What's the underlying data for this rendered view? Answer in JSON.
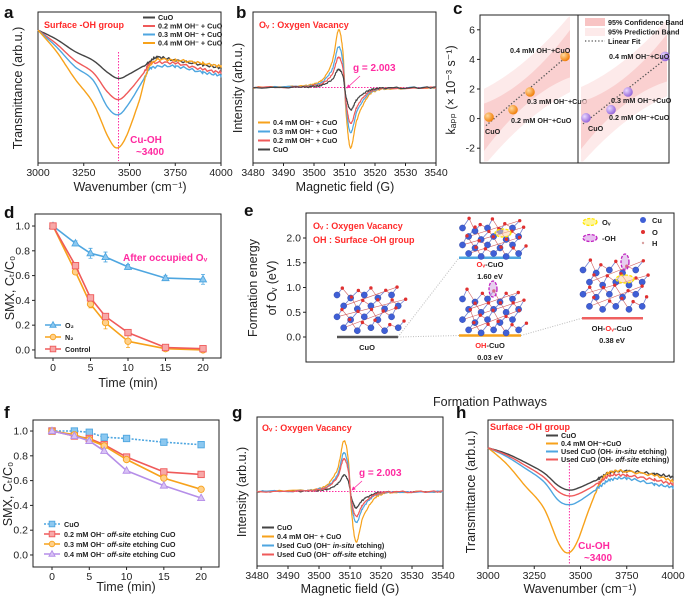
{
  "chart_data": [
    {
      "panel": "a",
      "type": "line",
      "xlabel": "Wavenumber (cm⁻¹)",
      "ylabel": "Transmittance (arb.u.)",
      "xlim": [
        3000,
        4000
      ],
      "xticks": [
        3000,
        3250,
        3500,
        3750,
        4000
      ],
      "annotation": "Surface -OH group",
      "peak_label": "Cu-OH",
      "peak_value": "~3400",
      "peak_marker_x": 3440,
      "series": [
        {
          "name": "CuO",
          "color": "#444444",
          "points": [
            [
              3000,
              0.88
            ],
            [
              3100,
              0.82
            ],
            [
              3200,
              0.74
            ],
            [
              3300,
              0.68
            ],
            [
              3380,
              0.6
            ],
            [
              3440,
              0.56
            ],
            [
              3500,
              0.59
            ],
            [
              3600,
              0.66
            ],
            [
              3650,
              0.7
            ],
            [
              3750,
              0.68
            ],
            [
              3900,
              0.65
            ],
            [
              4000,
              0.63
            ]
          ]
        },
        {
          "name": "0.2 mM OH⁻ + CuO",
          "color": "#ef5a5a",
          "points": [
            [
              3000,
              0.88
            ],
            [
              3100,
              0.79
            ],
            [
              3200,
              0.68
            ],
            [
              3300,
              0.6
            ],
            [
              3380,
              0.47
            ],
            [
              3440,
              0.42
            ],
            [
              3500,
              0.48
            ],
            [
              3580,
              0.6
            ],
            [
              3620,
              0.66
            ],
            [
              3750,
              0.66
            ],
            [
              3900,
              0.62
            ],
            [
              4000,
              0.6
            ]
          ]
        },
        {
          "name": "0.3 mM OH⁻ + CuO",
          "color": "#4ea6e0",
          "points": [
            [
              3000,
              0.88
            ],
            [
              3100,
              0.77
            ],
            [
              3200,
              0.64
            ],
            [
              3300,
              0.55
            ],
            [
              3380,
              0.37
            ],
            [
              3440,
              0.32
            ],
            [
              3500,
              0.4
            ],
            [
              3580,
              0.56
            ],
            [
              3620,
              0.63
            ],
            [
              3750,
              0.64
            ],
            [
              3900,
              0.6
            ],
            [
              4000,
              0.58
            ]
          ]
        },
        {
          "name": "0.4 mM OH⁻ + CuO",
          "color": "#f7a21b",
          "points": [
            [
              3000,
              0.88
            ],
            [
              3100,
              0.74
            ],
            [
              3200,
              0.56
            ],
            [
              3300,
              0.4
            ],
            [
              3380,
              0.18
            ],
            [
              3430,
              0.1
            ],
            [
              3480,
              0.17
            ],
            [
              3550,
              0.4
            ],
            [
              3620,
              0.66
            ],
            [
              3750,
              0.68
            ],
            [
              3900,
              0.66
            ],
            [
              4000,
              0.64
            ]
          ]
        }
      ]
    },
    {
      "panel": "b",
      "type": "line",
      "title": "Oᵥ : Oxygen Vacancy",
      "g_label": "g = 2.003",
      "xlabel": "Magnetic field (G)",
      "ylabel": "Intensity (arb.u.)",
      "xlim": [
        3480,
        3540
      ],
      "xticks": [
        3480,
        3490,
        3500,
        3510,
        3520,
        3530,
        3540
      ],
      "x": [
        3480,
        3495,
        3500,
        3503,
        3506,
        3508,
        3509.5,
        3510.5,
        3512,
        3514,
        3517,
        3520,
        3525,
        3540
      ],
      "series": [
        {
          "name": "0.4 mM OH⁻ + CuO",
          "color": "#f7a21b",
          "values": [
            0.5,
            0.508,
            0.523,
            0.557,
            0.671,
            0.88,
            0.728,
            0.34,
            0.1,
            0.28,
            0.42,
            0.476,
            0.492,
            0.5
          ]
        },
        {
          "name": "0.3 mM OH⁻ + CuO",
          "color": "#4ea6e0",
          "values": [
            0.5,
            0.505,
            0.516,
            0.541,
            0.622,
            0.77,
            0.662,
            0.38,
            0.2,
            0.335,
            0.44,
            0.482,
            0.494,
            0.5
          ]
        },
        {
          "name": "0.2 mM OH⁻ + CuO",
          "color": "#ef5a5a",
          "values": [
            0.5,
            0.504,
            0.512,
            0.53,
            0.59,
            0.7,
            0.62,
            0.404,
            0.26,
            0.368,
            0.452,
            0.486,
            0.495,
            0.5
          ]
        },
        {
          "name": "CuO",
          "color": "#444444",
          "values": [
            0.5,
            0.502,
            0.507,
            0.518,
            0.554,
            0.62,
            0.572,
            0.44,
            0.35,
            0.418,
            0.47,
            0.491,
            0.497,
            0.5
          ]
        }
      ]
    },
    {
      "panel": "c",
      "type": "scatter",
      "ylabel": "kₐₚₚ (× 10⁻³ s⁻¹)",
      "ylim": [
        -3,
        7
      ],
      "yticks": [
        -2,
        0,
        2,
        4,
        6
      ],
      "legend": [
        "95% Confidence Band",
        "95% Prediction Band",
        "Linear Fit"
      ],
      "groups": [
        {
          "color": "#f57c00",
          "points": [
            {
              "label": "CuO",
              "y": 0.1
            },
            {
              "label": "0.2 mM OH⁻+CuO",
              "y": 0.6
            },
            {
              "label": "0.3 mM OH⁻+CuO",
              "y": 1.8
            },
            {
              "label": "0.4 mM OH⁻+CuO",
              "y": 4.2
            }
          ],
          "linear_fit_at_ends": [
            -0.3,
            4.1
          ]
        },
        {
          "color": "#a070e0",
          "points": [
            {
              "label": "CuO",
              "y": 0.05
            },
            {
              "label": "0.2 mM OH⁻+CuO",
              "y": 0.6
            },
            {
              "label": "0.3 mM OH⁻+CuO",
              "y": 1.8
            },
            {
              "label": "0.4 mM OH⁻+CuO",
              "y": 4.2
            }
          ],
          "linear_fit_at_ends": [
            -0.2,
            4.0
          ]
        }
      ],
      "band_color": "#f8c4c4"
    },
    {
      "panel": "d",
      "type": "line",
      "xlabel": "Time (min)",
      "ylabel": "SMX, Cₜ/C₀",
      "annotation": "After occupied Oᵥ",
      "xticks": [
        0,
        5,
        10,
        15,
        20
      ],
      "yticks": [
        0.0,
        0.2,
        0.4,
        0.6,
        0.8,
        1.0
      ],
      "x": [
        0,
        3,
        5,
        7,
        10,
        15,
        20
      ],
      "series": [
        {
          "name": "O₂",
          "marker": "triangle",
          "color": "#4ea6e0",
          "fill": "#8cc8f0",
          "values": [
            1.0,
            0.86,
            0.78,
            0.75,
            0.67,
            0.58,
            0.57
          ],
          "errors": [
            0.02,
            0.02,
            0.04,
            0.04,
            0.02,
            0.02,
            0.04
          ]
        },
        {
          "name": "N₂",
          "marker": "circle",
          "color": "#f7a21b",
          "fill": "#ffd08a",
          "values": [
            1.0,
            0.63,
            0.37,
            0.22,
            0.07,
            0.01,
            0.0
          ],
          "errors": [
            0.0,
            0.02,
            0.03,
            0.05,
            0.05,
            0.01,
            0.0
          ]
        },
        {
          "name": "Control",
          "marker": "square",
          "color": "#ef5a5a",
          "fill": "#f7a8a8",
          "values": [
            1.0,
            0.68,
            0.42,
            0.27,
            0.14,
            0.02,
            0.01
          ],
          "errors": [
            0.0,
            0.01,
            0.01,
            0.01,
            0.02,
            0.01,
            0.0
          ]
        }
      ]
    },
    {
      "panel": "e",
      "type": "diagram",
      "ylabel_line1": "Formation energy",
      "ylabel_line2": "of Oᵥ (eV)",
      "xlabel": "Formation Pathways",
      "yticks": [
        0.0,
        0.5,
        1.0,
        1.5,
        2.0
      ],
      "legend_text": [
        "Oᵥ : Oxygen Vacancy",
        "OH : Surface -OH group"
      ],
      "marker_legend": [
        "Oᵥ",
        "-OH"
      ],
      "atom_legend": [
        "Cu",
        "O",
        "H"
      ],
      "levels": [
        {
          "name": "CuO",
          "value": 0.0,
          "value_label": "",
          "color": "#555555"
        },
        {
          "name_red": "Oᵥ",
          "name_rest": "-CuO",
          "value": 1.6,
          "value_label": "1.60 eV",
          "color": "#4ea6e0"
        },
        {
          "name_red": "OH",
          "name_rest": "-CuO",
          "value": 0.03,
          "value_label": "0.03 eV",
          "color": "#f7a21b"
        },
        {
          "name_pre": "OH-",
          "name_red": "Oᵥ",
          "name_rest": "-CuO",
          "value": 0.38,
          "value_label": "0.38 eV",
          "color": "#ef6060"
        }
      ],
      "colors": {
        "cu": "#3f5fd6",
        "o": "#e03030",
        "h": "#d9a0a0",
        "ov_ring": "#ffe600",
        "oh_ring": "#c020c0"
      }
    },
    {
      "panel": "f",
      "type": "line",
      "xlabel": "Time (min)",
      "ylabel": "SMX, Cₜ/C₀",
      "xticks": [
        0,
        5,
        10,
        15,
        20
      ],
      "yticks": [
        0.0,
        0.2,
        0.4,
        0.6,
        0.8,
        1.0
      ],
      "x": [
        0,
        3,
        5,
        7,
        10,
        15,
        20
      ],
      "series": [
        {
          "name": "CuO",
          "marker": "square",
          "dashed": true,
          "color": "#4ea6e0",
          "fill": "#8cc8f0",
          "values": [
            1.0,
            1.0,
            0.99,
            0.95,
            0.94,
            0.91,
            0.89
          ]
        },
        {
          "name": "0.2 mM OH⁻ off-site etching CuO",
          "italic": "off-site",
          "marker": "square",
          "color": "#ef5a5a",
          "fill": "#f7a8a8",
          "values": [
            1.0,
            0.96,
            0.94,
            0.89,
            0.79,
            0.67,
            0.65
          ]
        },
        {
          "name": "0.3 mM OH⁻ off-site etching CuO",
          "italic": "off-site",
          "marker": "circle",
          "color": "#f7a21b",
          "fill": "#ffd08a",
          "values": [
            1.0,
            0.97,
            0.93,
            0.88,
            0.77,
            0.62,
            0.53
          ]
        },
        {
          "name": "0.4 mM OH⁻ off-site etching CuO",
          "italic": "off-site",
          "marker": "triangle",
          "color": "#b58ee8",
          "fill": "#d8c2f5",
          "values": [
            1.0,
            0.96,
            0.92,
            0.84,
            0.68,
            0.56,
            0.46
          ]
        }
      ]
    },
    {
      "panel": "g",
      "type": "line",
      "title": "Oᵥ : Oxygen Vacancy",
      "g_label": "g = 2.003",
      "xlabel": "Magnetic field (G)",
      "ylabel": "Intensity (arb.u.)",
      "xlim": [
        3480,
        3540
      ],
      "xticks": [
        3480,
        3490,
        3500,
        3510,
        3520,
        3530,
        3540
      ],
      "x": [
        3480,
        3495,
        3500,
        3503,
        3506,
        3508,
        3509.5,
        3510.5,
        3512,
        3514,
        3517,
        3520,
        3525,
        3540
      ],
      "series": [
        {
          "name": "CuO",
          "color": "#444444",
          "values": [
            0.5,
            0.502,
            0.507,
            0.517,
            0.55,
            0.61,
            0.566,
            0.456,
            0.39,
            0.44,
            0.478,
            0.493,
            0.498,
            0.5
          ]
        },
        {
          "name": "0.4 mM OH⁻ + CuO",
          "color": "#f7a21b",
          "values": [
            0.5,
            0.507,
            0.52,
            0.551,
            0.653,
            0.84,
            0.704,
            0.364,
            0.16,
            0.313,
            0.432,
            0.48,
            0.493,
            0.5
          ]
        },
        {
          "name": "Used CuO (OH⁻ in-situ etching)",
          "italic": "in-situ",
          "color": "#4ea6e0",
          "values": [
            0.5,
            0.505,
            0.516,
            0.539,
            0.617,
            0.76,
            0.656,
            0.416,
            0.29,
            0.384,
            0.458,
            0.487,
            0.496,
            0.5
          ]
        },
        {
          "name": "Used CuO (OH⁻ off-site etching)",
          "italic": "off-site",
          "color": "#ef5a5a",
          "values": [
            0.5,
            0.504,
            0.513,
            0.533,
            0.599,
            0.72,
            0.632,
            0.432,
            0.33,
            0.407,
            0.466,
            0.49,
            0.497,
            0.5
          ]
        }
      ]
    },
    {
      "panel": "h",
      "type": "line",
      "annotation": "Surface -OH group",
      "peak_label": "Cu-OH",
      "peak_value": "~3400",
      "peak_marker_x": 3440,
      "xlabel": "Wavenumber (cm⁻¹)",
      "ylabel": "Transmittance (arb.u.)",
      "xlim": [
        3000,
        4000
      ],
      "xticks": [
        3000,
        3250,
        3500,
        3750,
        4000
      ],
      "series": [
        {
          "name": "CuO",
          "color": "#444444",
          "points": [
            [
              3000,
              0.81
            ],
            [
              3100,
              0.77
            ],
            [
              3200,
              0.71
            ],
            [
              3300,
              0.64
            ],
            [
              3380,
              0.55
            ],
            [
              3440,
              0.52
            ],
            [
              3500,
              0.54
            ],
            [
              3600,
              0.6
            ],
            [
              3660,
              0.64
            ],
            [
              3750,
              0.65
            ],
            [
              3900,
              0.63
            ],
            [
              4000,
              0.61
            ]
          ]
        },
        {
          "name": "0.4 mM OH⁻+CuO",
          "color": "#f7a21b",
          "points": [
            [
              3000,
              0.81
            ],
            [
              3100,
              0.7
            ],
            [
              3200,
              0.55
            ],
            [
              3300,
              0.4
            ],
            [
              3380,
              0.16
            ],
            [
              3430,
              0.09
            ],
            [
              3480,
              0.16
            ],
            [
              3550,
              0.4
            ],
            [
              3620,
              0.6
            ],
            [
              3700,
              0.65
            ],
            [
              3900,
              0.62
            ],
            [
              4000,
              0.58
            ]
          ]
        },
        {
          "name": "Used CuO (OH- in-situ etching)",
          "italic": "in-situ",
          "color": "#4ea6e0",
          "points": [
            [
              3000,
              0.81
            ],
            [
              3100,
              0.75
            ],
            [
              3200,
              0.67
            ],
            [
              3300,
              0.58
            ],
            [
              3380,
              0.45
            ],
            [
              3440,
              0.42
            ],
            [
              3500,
              0.45
            ],
            [
              3600,
              0.54
            ],
            [
              3660,
              0.59
            ],
            [
              3750,
              0.6
            ],
            [
              3900,
              0.56
            ],
            [
              4000,
              0.54
            ]
          ]
        },
        {
          "name": "Used CuO (OH- off-site etching)",
          "italic": "off-site",
          "color": "#ef5a5a",
          "points": [
            [
              3000,
              0.81
            ],
            [
              3100,
              0.76
            ],
            [
              3200,
              0.69
            ],
            [
              3300,
              0.61
            ],
            [
              3380,
              0.51
            ],
            [
              3440,
              0.48
            ],
            [
              3500,
              0.5
            ],
            [
              3600,
              0.57
            ],
            [
              3660,
              0.62
            ],
            [
              3750,
              0.62
            ],
            [
              3900,
              0.59
            ],
            [
              4000,
              0.56
            ]
          ]
        }
      ]
    }
  ],
  "panel_labels": [
    "a",
    "b",
    "c",
    "d",
    "e",
    "f",
    "g",
    "h"
  ],
  "colors": {
    "annotation_red": "#ff2a2a",
    "annotation_magenta": "#ff2aa0"
  }
}
